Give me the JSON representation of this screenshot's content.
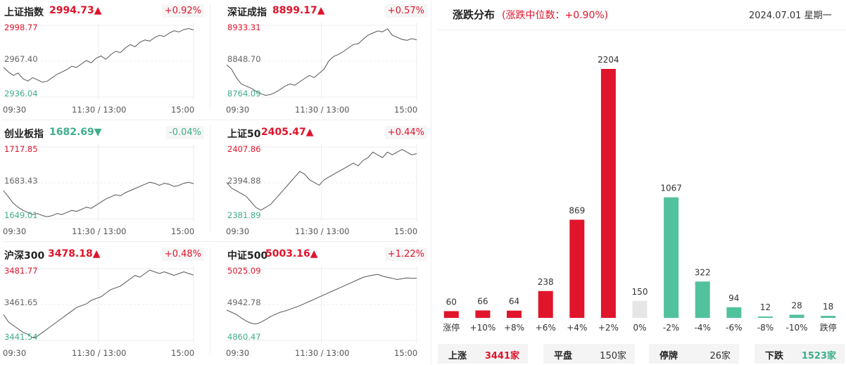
{
  "indices": [
    {
      "name": "上证指数",
      "value": "2994.73",
      "arrow": "▲",
      "dir": "up",
      "pct": "+0.92%",
      "y_top": "2998.77",
      "y_mid": "2967.40",
      "y_bot": "2936.04",
      "ylim": [
        2936.04,
        2998.77
      ],
      "series": [
        2962,
        2958,
        2955,
        2957,
        2952,
        2950,
        2953,
        2951,
        2949,
        2950,
        2953,
        2956,
        2958,
        2960,
        2963,
        2962,
        2965,
        2968,
        2966,
        2970,
        2972,
        2969,
        2973,
        2976,
        2975,
        2979,
        2982,
        2980,
        2984,
        2986,
        2985,
        2988,
        2990,
        2989,
        2992,
        2994,
        2993,
        2995,
        2996,
        2994.73
      ]
    },
    {
      "name": "深证成指",
      "value": "8899.17",
      "arrow": "▲",
      "dir": "up",
      "pct": "+0.57%",
      "y_top": "8933.31",
      "y_mid": "8848.70",
      "y_bot": "8764.09",
      "ylim": [
        8764.09,
        8933.31
      ],
      "series": [
        8840,
        8830,
        8810,
        8795,
        8790,
        8785,
        8778,
        8772,
        8768,
        8770,
        8775,
        8782,
        8790,
        8795,
        8792,
        8800,
        8808,
        8815,
        8810,
        8820,
        8830,
        8850,
        8860,
        8865,
        8872,
        8880,
        8888,
        8890,
        8900,
        8910,
        8915,
        8920,
        8918,
        8925,
        8910,
        8905,
        8900,
        8898,
        8902,
        8899.17
      ]
    },
    {
      "name": "创业板指",
      "value": "1682.69",
      "arrow": "▼",
      "dir": "down",
      "pct": "-0.04%",
      "y_top": "1717.85",
      "y_mid": "1683.43",
      "y_bot": "1649.01",
      "ylim": [
        1649.01,
        1717.85
      ],
      "series": [
        1676,
        1670,
        1664,
        1660,
        1657,
        1655,
        1653,
        1654,
        1652,
        1651,
        1652,
        1654,
        1653,
        1655,
        1657,
        1656,
        1658,
        1660,
        1659,
        1662,
        1665,
        1668,
        1670,
        1672,
        1671,
        1674,
        1676,
        1678,
        1680,
        1682,
        1684,
        1683,
        1681,
        1683,
        1682,
        1680,
        1681,
        1683,
        1684,
        1682.69
      ]
    },
    {
      "name": "上证50",
      "value": "2405.47",
      "arrow": "▲",
      "dir": "up",
      "pct": "+0.44%",
      "y_top": "2407.86",
      "y_mid": "2394.88",
      "y_bot": "2381.89",
      "ylim": [
        2381.89,
        2407.86
      ],
      "series": [
        2395,
        2393,
        2392,
        2391,
        2390,
        2388,
        2386,
        2385,
        2386,
        2387,
        2389,
        2391,
        2393,
        2395,
        2397,
        2399,
        2398,
        2396,
        2395,
        2394,
        2396,
        2397,
        2398,
        2399,
        2400,
        2401,
        2402,
        2401,
        2403,
        2404,
        2406,
        2405,
        2404,
        2406,
        2405,
        2406,
        2407,
        2406,
        2405,
        2405.47
      ]
    },
    {
      "name": "沪深300",
      "value": "3478.18",
      "arrow": "▲",
      "dir": "up",
      "pct": "+0.48%",
      "y_top": "3481.77",
      "y_mid": "3461.65",
      "y_bot": "3441.54",
      "ylim": [
        3441.54,
        3481.77
      ],
      "series": [
        3456,
        3452,
        3450,
        3448,
        3446,
        3445,
        3443,
        3444,
        3446,
        3448,
        3450,
        3452,
        3454,
        3456,
        3458,
        3460,
        3461,
        3462,
        3464,
        3465,
        3466,
        3468,
        3470,
        3471,
        3472,
        3474,
        3476,
        3478,
        3477,
        3479,
        3481,
        3480,
        3479,
        3480,
        3479,
        3478,
        3479,
        3480,
        3479,
        3478.18
      ]
    },
    {
      "name": "中证500",
      "value": "5003.16",
      "arrow": "▲",
      "dir": "up",
      "pct": "+1.22%",
      "y_top": "5025.09",
      "y_mid": "4942.78",
      "y_bot": "4860.47",
      "ylim": [
        4860.47,
        5025.09
      ],
      "series": [
        4930,
        4925,
        4920,
        4912,
        4905,
        4900,
        4898,
        4902,
        4908,
        4915,
        4920,
        4925,
        4928,
        4932,
        4936,
        4940,
        4945,
        4950,
        4955,
        4960,
        4965,
        4970,
        4975,
        4980,
        4985,
        4990,
        4995,
        5000,
        5005,
        5008,
        5010,
        5012,
        5008,
        5005,
        5003,
        5000,
        5002,
        5004,
        5003,
        5003.16
      ]
    }
  ],
  "time_labels": {
    "open": "09:30",
    "mid": "11:30 / 13:00",
    "close": "15:00"
  },
  "distribution": {
    "title": "涨跌分布",
    "subtitle": "(涨跌中位数：+0.90%)",
    "date": "2024.07.01 星期一"
  },
  "chart_data": {
    "type": "bar",
    "title": "涨跌分布",
    "categories": [
      "涨停",
      "+10%",
      "+8%",
      "+6%",
      "+4%",
      "+2%",
      "0%",
      "-2%",
      "-4%",
      "-6%",
      "-8%",
      "-10%",
      "跌停"
    ],
    "values": [
      60,
      66,
      64,
      238,
      869,
      2204,
      150,
      1067,
      322,
      94,
      12,
      28,
      18
    ],
    "colors": [
      "#e0142b",
      "#e0142b",
      "#e0142b",
      "#e0142b",
      "#e0142b",
      "#e0142b",
      "#e6e6e6",
      "#52c19e",
      "#52c19e",
      "#52c19e",
      "#52c19e",
      "#52c19e",
      "#52c19e"
    ]
  },
  "footer": [
    {
      "key": "上涨",
      "value": "3441家",
      "dir": "up"
    },
    {
      "key": "平盘",
      "value": "150家",
      "dir": "flat"
    },
    {
      "key": "停牌",
      "value": "26家",
      "dir": "flat"
    },
    {
      "key": "下跌",
      "value": "1523家",
      "dir": "down"
    }
  ],
  "colors": {
    "up": "#e0142b",
    "down": "#3fae8b",
    "flat_bar": "#e6e6e6",
    "line": "#555555"
  }
}
